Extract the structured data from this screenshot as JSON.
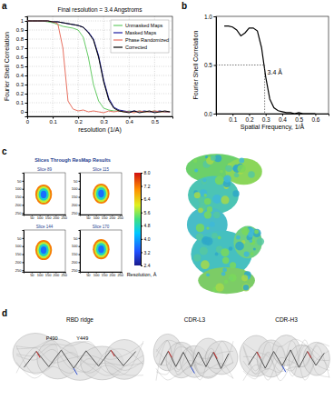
{
  "chart_data": [
    {
      "type": "line",
      "label": "a",
      "title": "Final resolution = 3.4 Angstroms",
      "x_label": "resolution (1/A)",
      "y_label": "Fourier Shell Correlation",
      "x": [
        0,
        0.02,
        0.04,
        0.06,
        0.08,
        0.1,
        0.12,
        0.14,
        0.16,
        0.18,
        0.2,
        0.22,
        0.24,
        0.26,
        0.28,
        0.3,
        0.32,
        0.34,
        0.36,
        0.38,
        0.4,
        0.42,
        0.44,
        0.46,
        0.48,
        0.5,
        0.52,
        0.54,
        0.56
      ],
      "series": [
        {
          "name": "Unmasked Maps",
          "color": "#66cc66",
          "values": [
            1,
            1,
            1,
            1,
            0.99,
            0.98,
            0.96,
            0.94,
            0.93,
            0.92,
            0.9,
            0.82,
            0.6,
            0.3,
            0.12,
            0.04,
            0.02,
            0.01,
            0.01,
            0,
            0.01,
            0,
            0.01,
            0,
            0,
            0.01,
            0,
            0,
            0
          ]
        },
        {
          "name": "Masked Maps",
          "color": "#1a1aa0",
          "values": [
            1,
            1,
            1,
            1,
            1,
            0.99,
            0.99,
            0.98,
            0.97,
            0.96,
            0.95,
            0.93,
            0.88,
            0.8,
            0.62,
            0.35,
            0.15,
            0.05,
            0.02,
            0.01,
            0,
            0.01,
            0,
            0.01,
            0,
            0,
            0.01,
            0,
            0
          ]
        },
        {
          "name": "Phase Randomized",
          "color": "#e87060",
          "values": [
            1,
            1,
            1,
            1,
            1,
            0.99,
            0.97,
            0.7,
            0.12,
            0.03,
            0.01,
            0.02,
            0,
            0.01,
            0,
            -0.01,
            0.01,
            0,
            0.01,
            0,
            0,
            -0.01,
            0.01,
            0,
            0,
            0.01,
            0,
            0,
            0
          ]
        },
        {
          "name": "Corrected",
          "color": "#000000",
          "values": [
            1,
            1,
            1,
            1,
            1,
            0.99,
            0.99,
            0.98,
            0.97,
            0.96,
            0.95,
            0.93,
            0.87,
            0.79,
            0.6,
            0.33,
            0.13,
            0.04,
            0.01,
            0,
            -0.01,
            0.01,
            -0.01,
            0,
            0.01,
            -0.01,
            0,
            0.01,
            0
          ]
        }
      ],
      "xlim": [
        0,
        0.57
      ],
      "xticks": [
        0,
        0.1,
        0.2,
        0.3,
        0.4,
        0.5
      ],
      "ylim": [
        -0.05,
        1.05
      ],
      "yticks": [
        0,
        0.1,
        0.2,
        0.3,
        0.4,
        0.5,
        0.6,
        0.7,
        0.8,
        0.9,
        1
      ],
      "grid": true,
      "legend": "top-right"
    },
    {
      "type": "line",
      "label": "b",
      "x_label": "Spatial Frequency, 1/Å",
      "y_label": "Fourier Shell Correlation",
      "x": [
        0.05,
        0.075,
        0.1,
        0.125,
        0.15,
        0.175,
        0.2,
        0.225,
        0.25,
        0.275,
        0.3,
        0.325,
        0.35,
        0.375,
        0.4,
        0.425,
        0.45,
        0.475,
        0.5,
        0.525,
        0.55,
        0.575,
        0.6
      ],
      "values": [
        0.9,
        0.9,
        0.89,
        0.86,
        0.8,
        0.83,
        0.88,
        0.88,
        0.85,
        0.68,
        0.38,
        0.15,
        0.06,
        0.03,
        0.02,
        0.01,
        0.01,
        0,
        0.01,
        0,
        0,
        0,
        0
      ],
      "color": "#000000",
      "xlim": [
        0,
        0.68
      ],
      "xticks": [
        0.1,
        0.2,
        0.3,
        0.4,
        0.5,
        0.6
      ],
      "ylim": [
        0,
        1
      ],
      "yticks": [
        {
          "value": 0,
          "label": "0.0"
        },
        0.5,
        {
          "value": 1,
          "label": "1.0"
        }
      ],
      "annotation": {
        "text": "3.4 Å",
        "x": 0.294,
        "y": 0.5
      }
    },
    {
      "type": "heatmap",
      "label": "c",
      "title": "Slices Through ResMap Results",
      "panels": [
        "Slice 89",
        "Slice 115",
        "Slice 144",
        "Slice 170"
      ],
      "xlim": [
        0,
        260
      ],
      "xticks": [
        50,
        100,
        150,
        200,
        250
      ],
      "ylim": [
        0,
        260
      ],
      "yticks": [
        50,
        100,
        150,
        200,
        250
      ],
      "colorbar": {
        "label": "Resolution, Å",
        "range": [
          2.4,
          8
        ],
        "ticks": [
          2.4,
          3.2,
          {
            "value": 4,
            "label": "4.0"
          },
          4.8,
          5.6,
          6.4,
          7.2,
          {
            "value": 8,
            "label": "8.0"
          }
        ]
      }
    },
    {
      "type": "image",
      "label": "d",
      "panels": [
        {
          "title": "RBD ridge",
          "annotations": [
            "P490",
            "Y449"
          ]
        },
        {
          "title": "CDR-L3",
          "annotations": []
        },
        {
          "title": "CDR-H3",
          "annotations": []
        }
      ]
    }
  ]
}
